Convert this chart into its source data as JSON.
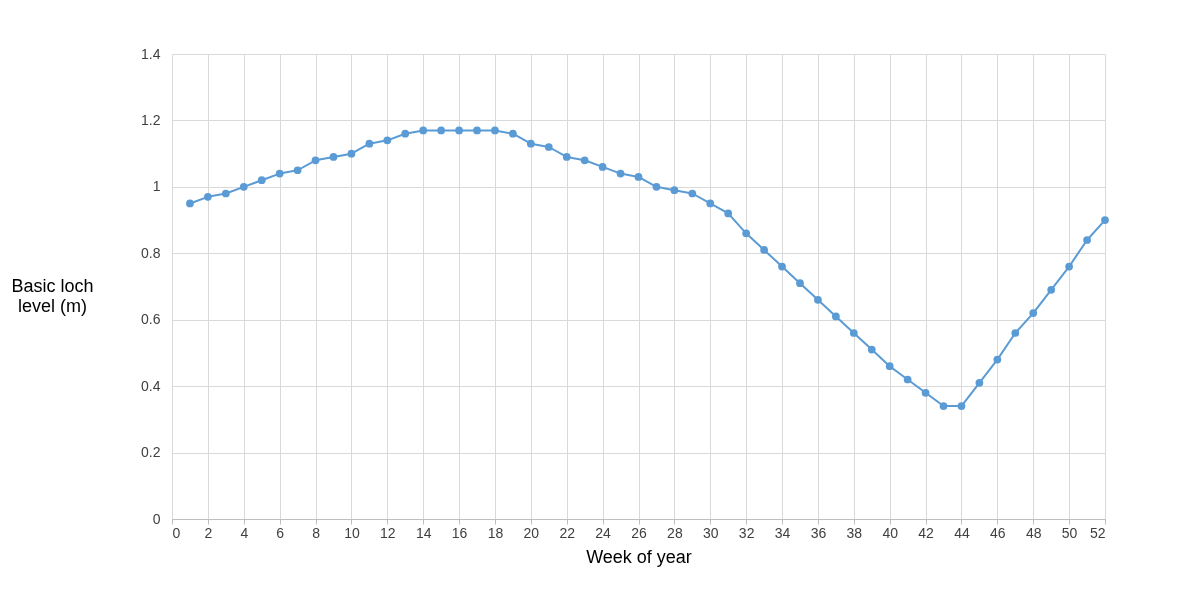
{
  "chart_data": {
    "type": "line",
    "xlabel": "Week of year",
    "ylabel": "Basic loch\nlevel (m)",
    "x": [
      1,
      2,
      3,
      4,
      5,
      6,
      7,
      8,
      9,
      10,
      11,
      12,
      13,
      14,
      15,
      16,
      17,
      18,
      19,
      20,
      21,
      22,
      23,
      24,
      25,
      26,
      27,
      28,
      29,
      30,
      31,
      32,
      33,
      34,
      35,
      36,
      37,
      38,
      39,
      40,
      41,
      42,
      43,
      44,
      45,
      46,
      47,
      48,
      49,
      50,
      51,
      52
    ],
    "series": [
      {
        "color": "#5b9bd5",
        "values": [
          0.95,
          0.97,
          0.98,
          1.0,
          1.02,
          1.04,
          1.05,
          1.08,
          1.09,
          1.1,
          1.13,
          1.14,
          1.16,
          1.17,
          1.17,
          1.17,
          1.17,
          1.17,
          1.16,
          1.13,
          1.12,
          1.09,
          1.08,
          1.06,
          1.04,
          1.03,
          1.0,
          0.99,
          0.98,
          0.95,
          0.92,
          0.86,
          0.81,
          0.76,
          0.71,
          0.66,
          0.61,
          0.56,
          0.51,
          0.46,
          0.42,
          0.38,
          0.34,
          0.34,
          0.41,
          0.48,
          0.56,
          0.62,
          0.69,
          0.76,
          0.84,
          0.9
        ]
      }
    ],
    "xlim": [
      0,
      52
    ],
    "xticks": [
      0,
      2,
      4,
      6,
      8,
      10,
      12,
      14,
      16,
      18,
      20,
      22,
      24,
      26,
      28,
      30,
      32,
      34,
      36,
      38,
      40,
      42,
      44,
      46,
      48,
      50,
      52
    ],
    "ylim": [
      0,
      1.4
    ],
    "yticks": [
      0,
      0.2,
      0.4,
      0.6,
      0.8,
      1,
      1.2,
      1.4
    ],
    "grid": true,
    "marker": "circle",
    "line_style": "solid"
  }
}
